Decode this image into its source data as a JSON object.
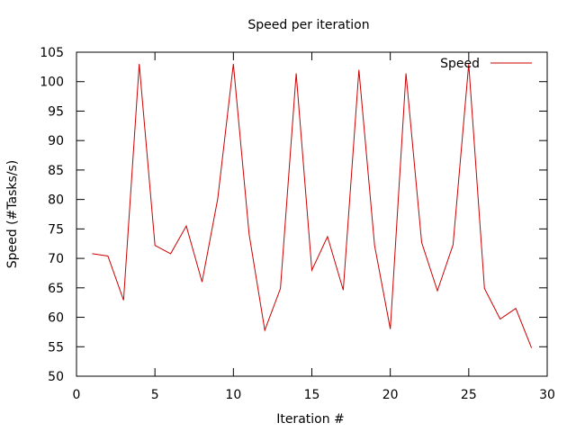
{
  "chart_data": {
    "type": "line",
    "title": "Speed per iteration",
    "xlabel": "Iteration #",
    "ylabel": "Speed (#Tasks/s)",
    "xlim": [
      0,
      30
    ],
    "ylim": [
      50,
      105
    ],
    "xticks": [
      0,
      5,
      10,
      15,
      20,
      25,
      30
    ],
    "yticks": [
      50,
      55,
      60,
      65,
      70,
      75,
      80,
      85,
      90,
      95,
      100,
      105
    ],
    "grid": false,
    "legend_position": "top-right",
    "series": [
      {
        "name": "Speed",
        "color": "#cc0000",
        "x": [
          1,
          2,
          3,
          4,
          5,
          6,
          7,
          8,
          9,
          10,
          11,
          12,
          13,
          14,
          15,
          16,
          17,
          18,
          19,
          20,
          21,
          22,
          23,
          24,
          25,
          26,
          27,
          28,
          29
        ],
        "y": [
          70.8,
          70.4,
          62.9,
          103.0,
          72.2,
          70.8,
          75.5,
          66.0,
          80.1,
          103.0,
          74.1,
          57.8,
          64.9,
          101.4,
          68.0,
          73.7,
          64.6,
          102.0,
          72.2,
          58.0,
          101.4,
          72.7,
          64.5,
          72.3,
          103.0,
          64.9,
          59.7,
          61.5,
          54.8
        ]
      }
    ]
  }
}
